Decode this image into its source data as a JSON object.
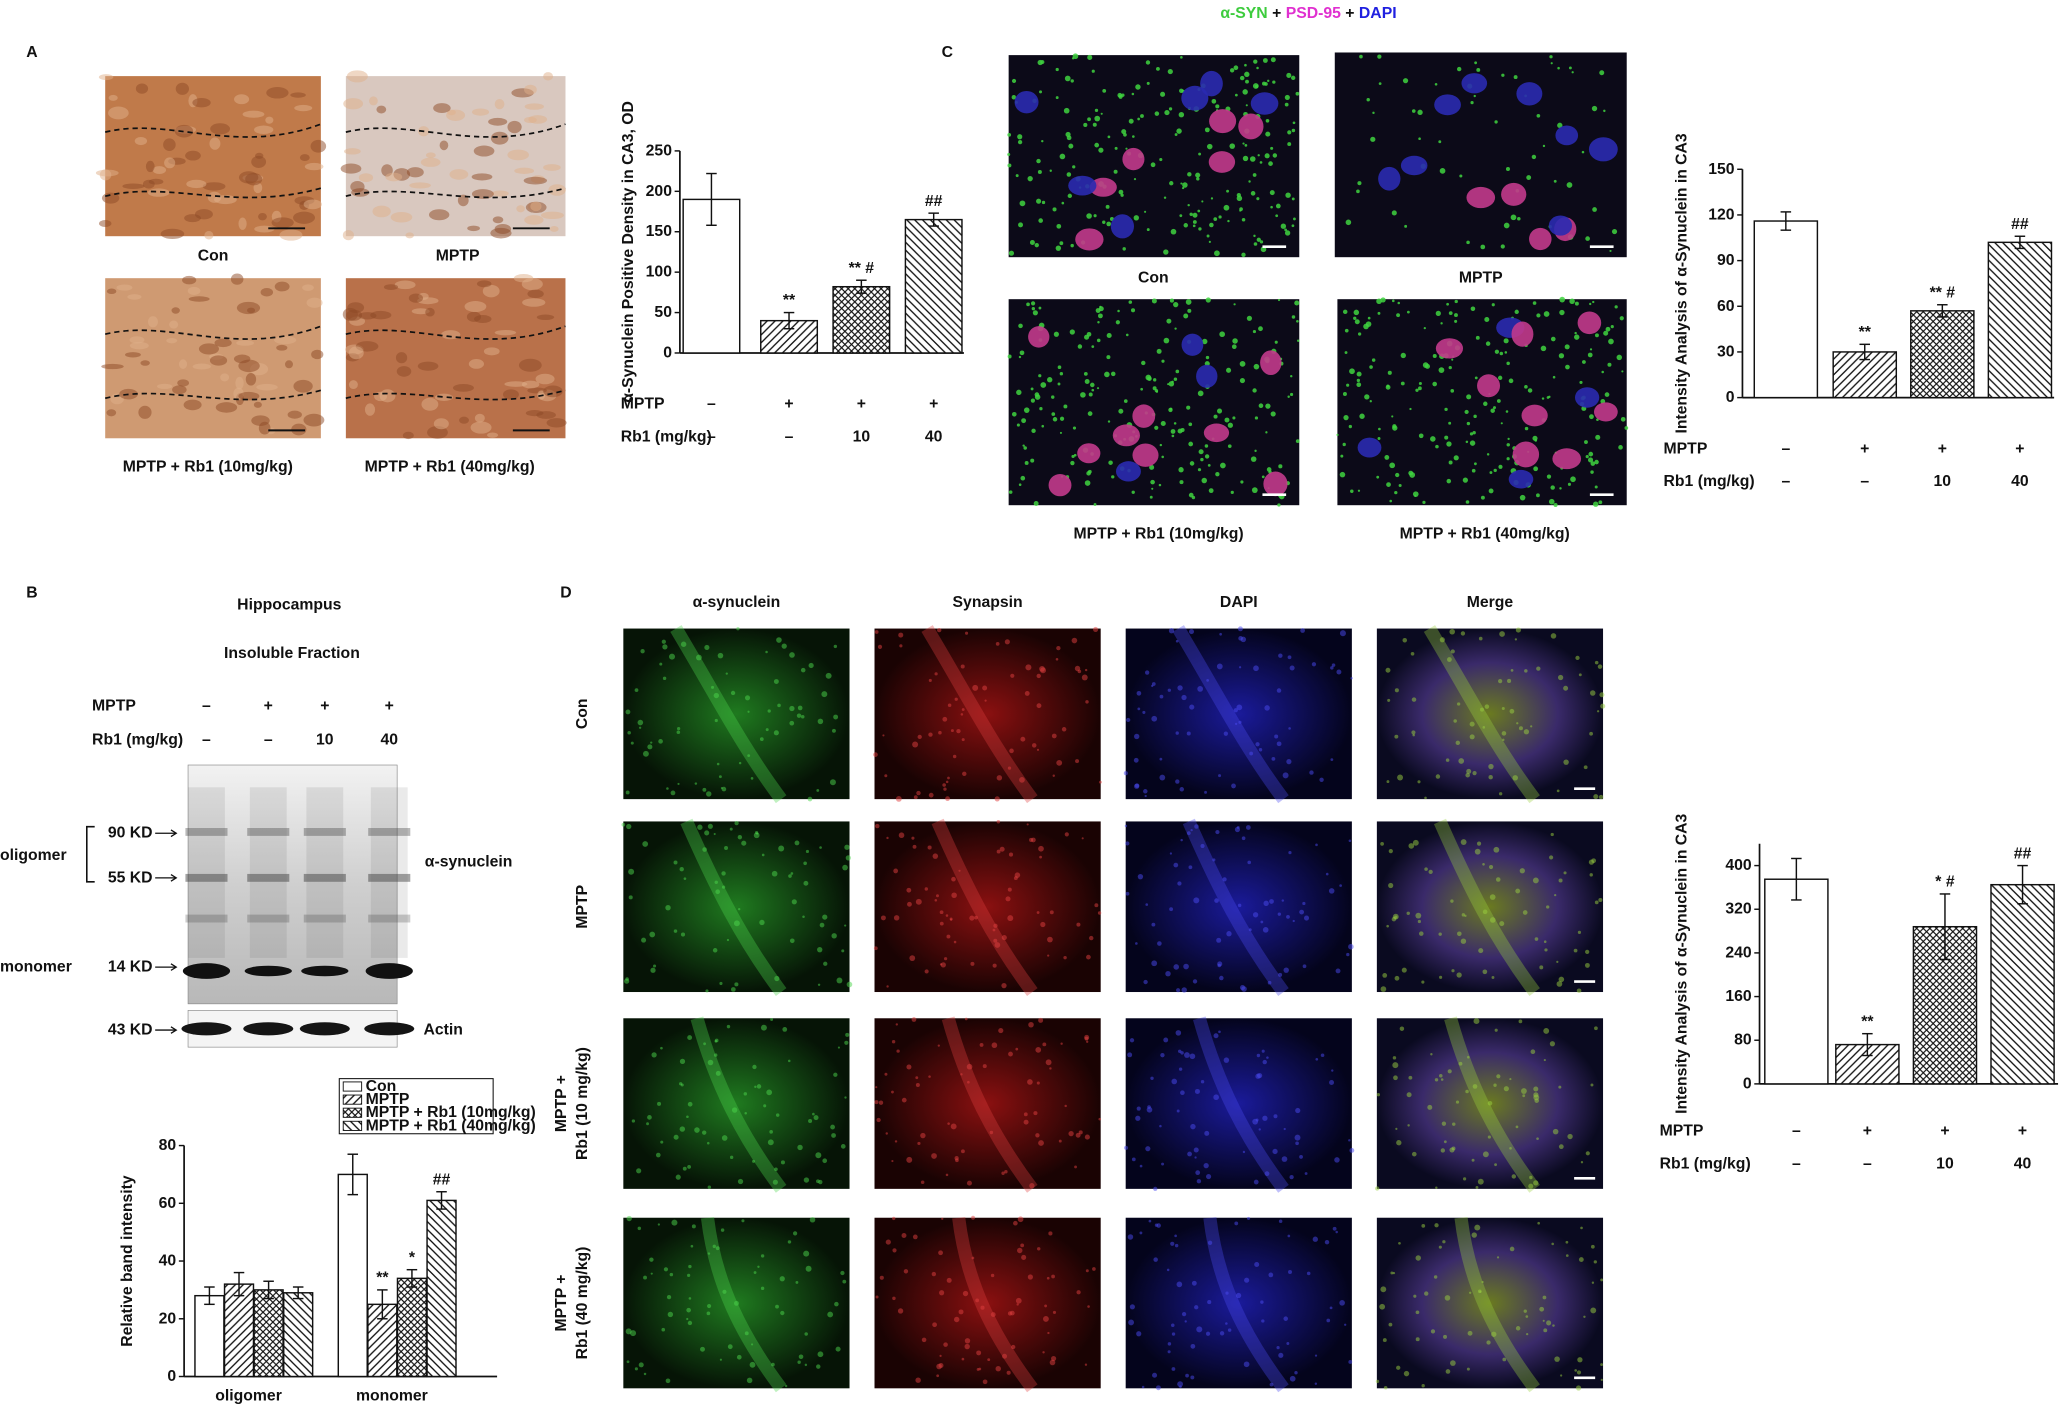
{
  "panel_a": {
    "letter": "A",
    "captions": [
      "Con",
      "MPTP",
      "MPTP + Rb1 (10mg/kg)",
      "MPTP + Rb1 (40mg/kg)"
    ]
  },
  "panel_b": {
    "letter": "B",
    "region": "Hippocampus",
    "fraction": "Insoluble Fraction",
    "conditions": [
      {
        "label": "MPTP",
        "values": [
          "–",
          "+",
          "+",
          "+"
        ]
      },
      {
        "label": "Rb1 (mg/kg)",
        "values": [
          "–",
          "–",
          "10",
          "40"
        ]
      }
    ],
    "blot": {
      "oligomer": "oligomer",
      "monomer": "monomer",
      "markers": [
        "90 KD",
        "55 KD",
        "14 KD",
        "43 KD"
      ],
      "protein": "α-synuclein",
      "loading": "Actin"
    }
  },
  "panel_c": {
    "letter": "C",
    "title": [
      {
        "text": "α-SYN",
        "color": "#3dcc3d"
      },
      {
        "text": "+",
        "color": "#111111"
      },
      {
        "text": "PSD-95",
        "color": "#e030d0"
      },
      {
        "text": "+",
        "color": "#111111"
      },
      {
        "text": "DAPI",
        "color": "#2020e0"
      }
    ],
    "captions": [
      "Con",
      "MPTP",
      "MPTP + Rb1 (10mg/kg)",
      "MPTP + Rb1 (40mg/kg)"
    ]
  },
  "panel_d": {
    "letter": "D",
    "columns": [
      "α-synuclein",
      "Synapsin",
      "DAPI",
      "Merge"
    ],
    "rows": [
      [
        "Con"
      ],
      [
        "MPTP"
      ],
      [
        "MPTP +",
        "Rb1 (10 mg/kg)"
      ],
      [
        "MPTP +",
        "Rb1 (40 mg/kg)"
      ]
    ]
  },
  "chart_data": [
    {
      "type": "bar",
      "y_label": "α-Synuclein Positive Density in CA3, OD",
      "ylim": [
        0,
        250
      ],
      "yticks": [
        0,
        50,
        100,
        150,
        200,
        250
      ],
      "values": [
        190,
        40,
        82,
        165
      ],
      "errors": [
        32,
        10,
        8,
        8
      ],
      "annotations": [
        null,
        "**",
        "** #",
        "##"
      ],
      "patterns": [
        "solid",
        "hatch",
        "crosshatch",
        "backhatch"
      ],
      "conditions": [
        {
          "label": "MPTP",
          "values": [
            "–",
            "+",
            "+",
            "+"
          ]
        },
        {
          "label": "Rb1 (mg/kg)",
          "values": [
            "–",
            "–",
            "10",
            "40"
          ]
        }
      ]
    },
    {
      "type": "grouped-bar",
      "y_label": "Relative band intensity",
      "categories": [
        "oligomer",
        "monomer"
      ],
      "ylim": [
        0,
        80
      ],
      "yticks": [
        0,
        20,
        40,
        60,
        80
      ],
      "series": [
        {
          "name": "Con",
          "pattern": "solid",
          "values": [
            28,
            70
          ],
          "errors": [
            3,
            7
          ],
          "annotations": [
            null,
            null
          ]
        },
        {
          "name": "MPTP",
          "pattern": "hatch",
          "values": [
            32,
            25
          ],
          "errors": [
            4,
            5
          ],
          "annotations": [
            null,
            "**"
          ]
        },
        {
          "name": "MPTP + Rb1 (10mg/kg)",
          "pattern": "crosshatch",
          "values": [
            30,
            34
          ],
          "errors": [
            3,
            3
          ],
          "annotations": [
            null,
            "*"
          ]
        },
        {
          "name": "MPTP + Rb1 (40mg/kg)",
          "pattern": "backhatch",
          "values": [
            29,
            61
          ],
          "errors": [
            2,
            3
          ],
          "annotations": [
            null,
            "##"
          ]
        }
      ]
    },
    {
      "type": "bar",
      "y_label": "Intensity Analysis of α-Synuclein  in CA3",
      "ylim": [
        0,
        150
      ],
      "yticks": [
        0,
        30,
        60,
        90,
        120,
        150
      ],
      "values": [
        116,
        30,
        57,
        102
      ],
      "errors": [
        6,
        5,
        4,
        4
      ],
      "annotations": [
        null,
        "**",
        "** #",
        "##"
      ],
      "patterns": [
        "solid",
        "hatch",
        "crosshatch",
        "backhatch"
      ],
      "conditions": [
        {
          "label": "MPTP",
          "values": [
            "–",
            "+",
            "+",
            "+"
          ]
        },
        {
          "label": "Rb1 (mg/kg)",
          "values": [
            "–",
            "–",
            "10",
            "40"
          ]
        }
      ]
    },
    {
      "type": "bar",
      "y_label": "Intensity Analysis of α-Synuclein  in CA3",
      "ylim": [
        0,
        440
      ],
      "yticks": [
        0,
        80,
        160,
        240,
        320,
        400
      ],
      "values": [
        375,
        72,
        288,
        365
      ],
      "errors": [
        38,
        20,
        60,
        35
      ],
      "annotations": [
        null,
        "**",
        "* #",
        "##"
      ],
      "patterns": [
        "solid",
        "hatch",
        "crosshatch",
        "backhatch"
      ],
      "conditions": [
        {
          "label": "MPTP",
          "values": [
            "–",
            "+",
            "+",
            "+"
          ]
        },
        {
          "label": "Rb1 (mg/kg)",
          "values": [
            "–",
            "–",
            "10",
            "40"
          ]
        }
      ]
    }
  ]
}
